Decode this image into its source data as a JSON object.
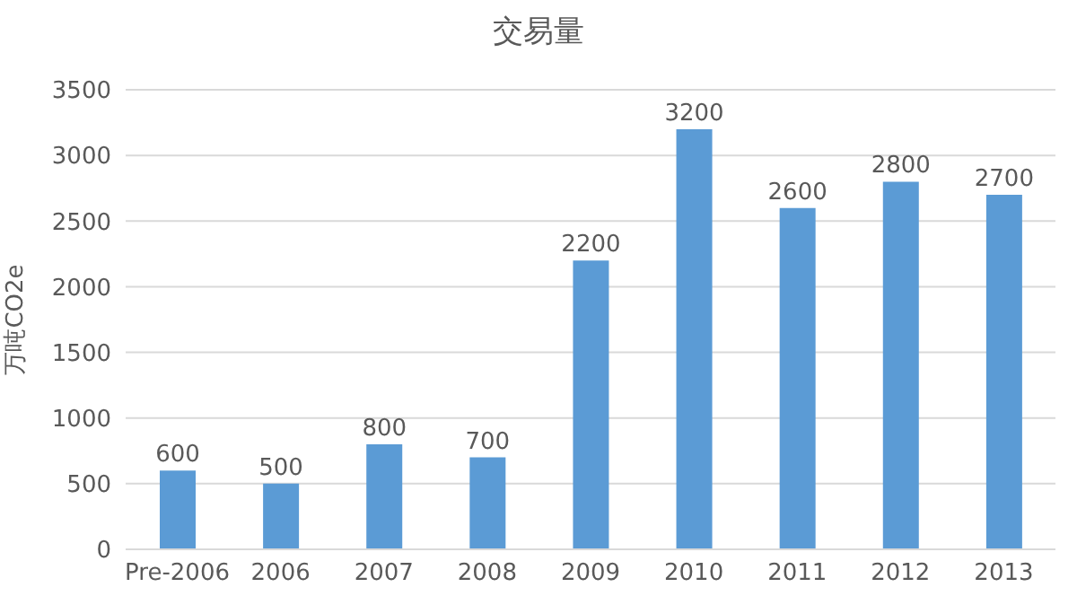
{
  "chart_data": {
    "type": "bar",
    "title": "交易量",
    "ylabel": "万吨CO2e",
    "categories": [
      "Pre-2006",
      "2006",
      "2007",
      "2008",
      "2009",
      "2010",
      "2011",
      "2012",
      "2013"
    ],
    "values": [
      600,
      500,
      800,
      700,
      2200,
      3200,
      2600,
      2800,
      2700
    ],
    "color": "#5b9bd5",
    "ylim": [
      0,
      3500
    ],
    "yticks": [
      0,
      500,
      1000,
      1500,
      2000,
      2500,
      3000,
      3500
    ],
    "grid": "y",
    "data_labels": true
  }
}
